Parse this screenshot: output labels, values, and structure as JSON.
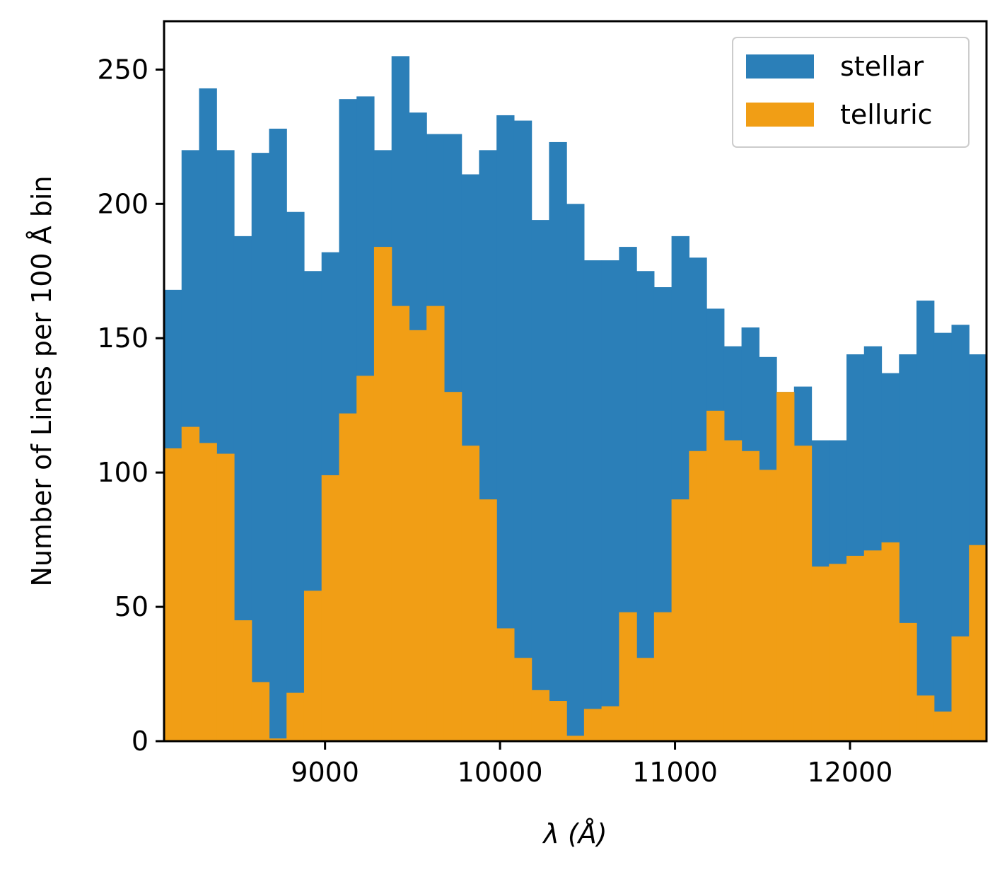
{
  "chart_data": {
    "type": "bar",
    "title": "",
    "xlabel": "λ (Å)",
    "ylabel": "Number of Lines per 100 Å bin",
    "xlim": [
      8080,
      12780
    ],
    "ylim": [
      0,
      268
    ],
    "xticks": [
      9000,
      10000,
      11000,
      12000
    ],
    "yticks": [
      0,
      50,
      100,
      150,
      200,
      250
    ],
    "xtick_labels": [
      "9000",
      "10000",
      "11000",
      "12000"
    ],
    "ytick_labels": [
      "0",
      "50",
      "100",
      "150",
      "200",
      "250"
    ],
    "bin_start": 8080,
    "bin_width": 100,
    "grid": false,
    "legend_position": "top-right",
    "series": [
      {
        "name": "stellar",
        "color": "#2b7fb8",
        "values": [
          168,
          220,
          243,
          220,
          188,
          219,
          228,
          197,
          175,
          182,
          239,
          240,
          220,
          255,
          234,
          226,
          226,
          211,
          220,
          233,
          231,
          194,
          223,
          200,
          179,
          179,
          184,
          175,
          169,
          188,
          180,
          161,
          147,
          154,
          143,
          130,
          132,
          112,
          112,
          144,
          147,
          137,
          144,
          164,
          152,
          155,
          144
        ]
      },
      {
        "name": "telluric",
        "color": "#f19e15",
        "values": [
          109,
          117,
          111,
          107,
          45,
          22,
          1,
          18,
          56,
          99,
          122,
          136,
          184,
          162,
          153,
          162,
          130,
          110,
          90,
          42,
          31,
          19,
          15,
          2,
          12,
          13,
          48,
          31,
          48,
          90,
          108,
          123,
          112,
          108,
          101,
          130,
          110,
          65,
          66,
          69,
          71,
          74,
          44,
          17,
          11,
          39,
          73
        ]
      }
    ]
  }
}
